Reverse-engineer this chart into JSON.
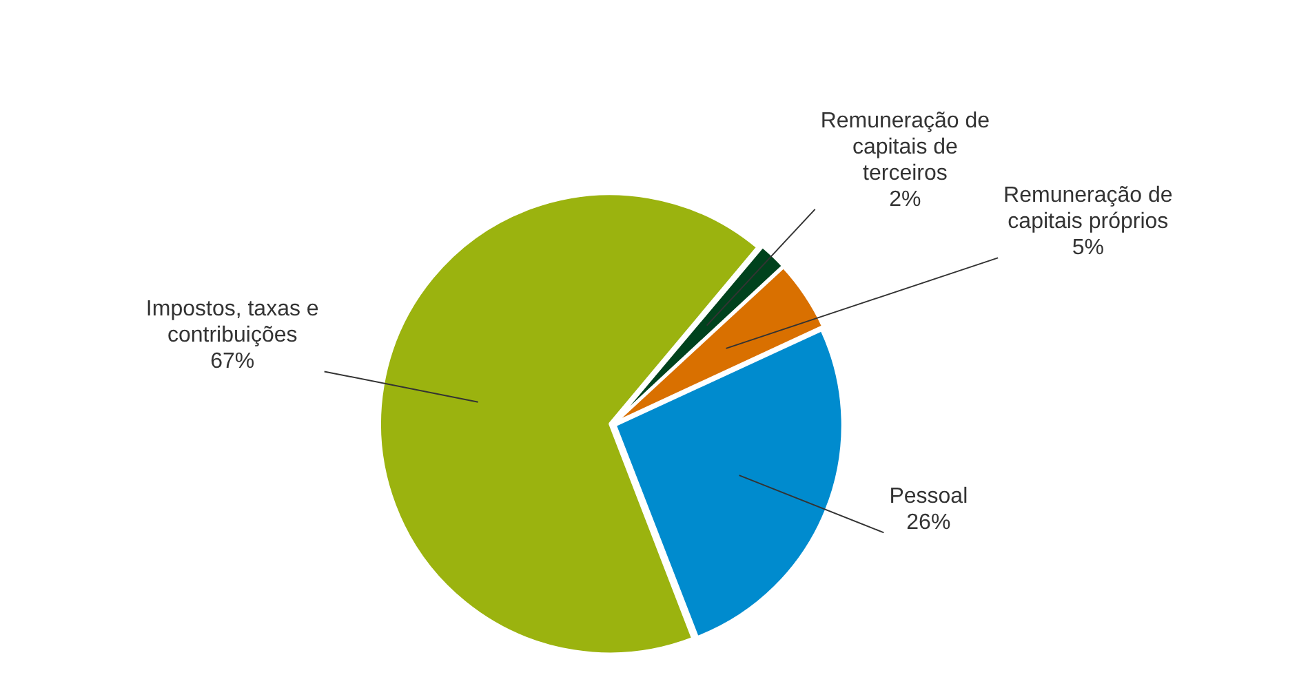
{
  "chart_data": {
    "type": "pie",
    "categories": [
      "Remuneração de capitais de terceiros",
      "Remuneração de capitais próprios",
      "Pessoal",
      "Impostos, taxas e contribuições"
    ],
    "values": [
      2,
      5,
      26,
      67
    ],
    "colors": [
      "#00421d",
      "#d97000",
      "#008bce",
      "#9bb30f"
    ],
    "value_labels": [
      "2%",
      "5%",
      "26%",
      "67%"
    ],
    "legend": false
  }
}
